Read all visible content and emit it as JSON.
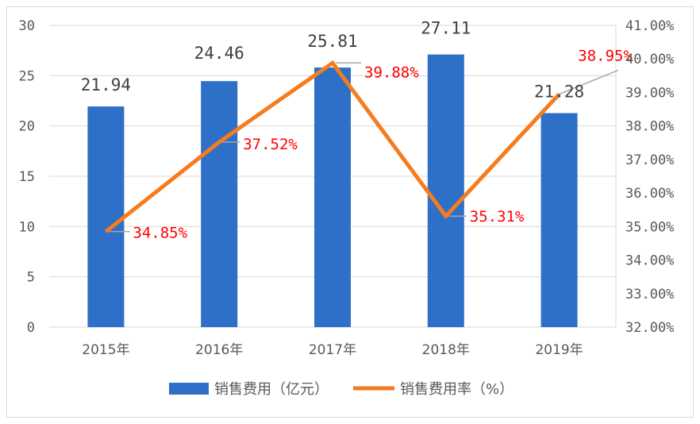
{
  "chart_data": {
    "type": "bar+line",
    "categories": [
      "2015年",
      "2016年",
      "2017年",
      "2018年",
      "2019年"
    ],
    "series": [
      {
        "name": "销售费用（亿元）",
        "type": "bar",
        "axis": "left",
        "values": [
          21.94,
          24.46,
          25.81,
          27.11,
          21.28
        ],
        "labels": [
          "21.94",
          "24.46",
          "25.81",
          "27.11",
          "21.28"
        ],
        "color": "#2e6fc8"
      },
      {
        "name": "销售费用率（%）",
        "type": "line",
        "axis": "right",
        "values": [
          34.85,
          37.52,
          39.88,
          35.31,
          38.95
        ],
        "labels": [
          "34.85%",
          "37.52%",
          "39.88%",
          "35.31%",
          "38.95%"
        ],
        "color": "#f57c1f"
      }
    ],
    "y_left": {
      "min": 0,
      "max": 30,
      "ticks": [
        "0",
        "5",
        "10",
        "15",
        "20",
        "25",
        "30"
      ]
    },
    "y_right": {
      "min": 32,
      "max": 41,
      "ticks": [
        "32.00%",
        "33.00%",
        "34.00%",
        "35.00%",
        "36.00%",
        "37.00%",
        "38.00%",
        "39.00%",
        "40.00%",
        "41.00%"
      ]
    },
    "grid": true,
    "legend": "bottom",
    "label_color": "#ff0000",
    "grid_color": "#d9d9d9"
  }
}
